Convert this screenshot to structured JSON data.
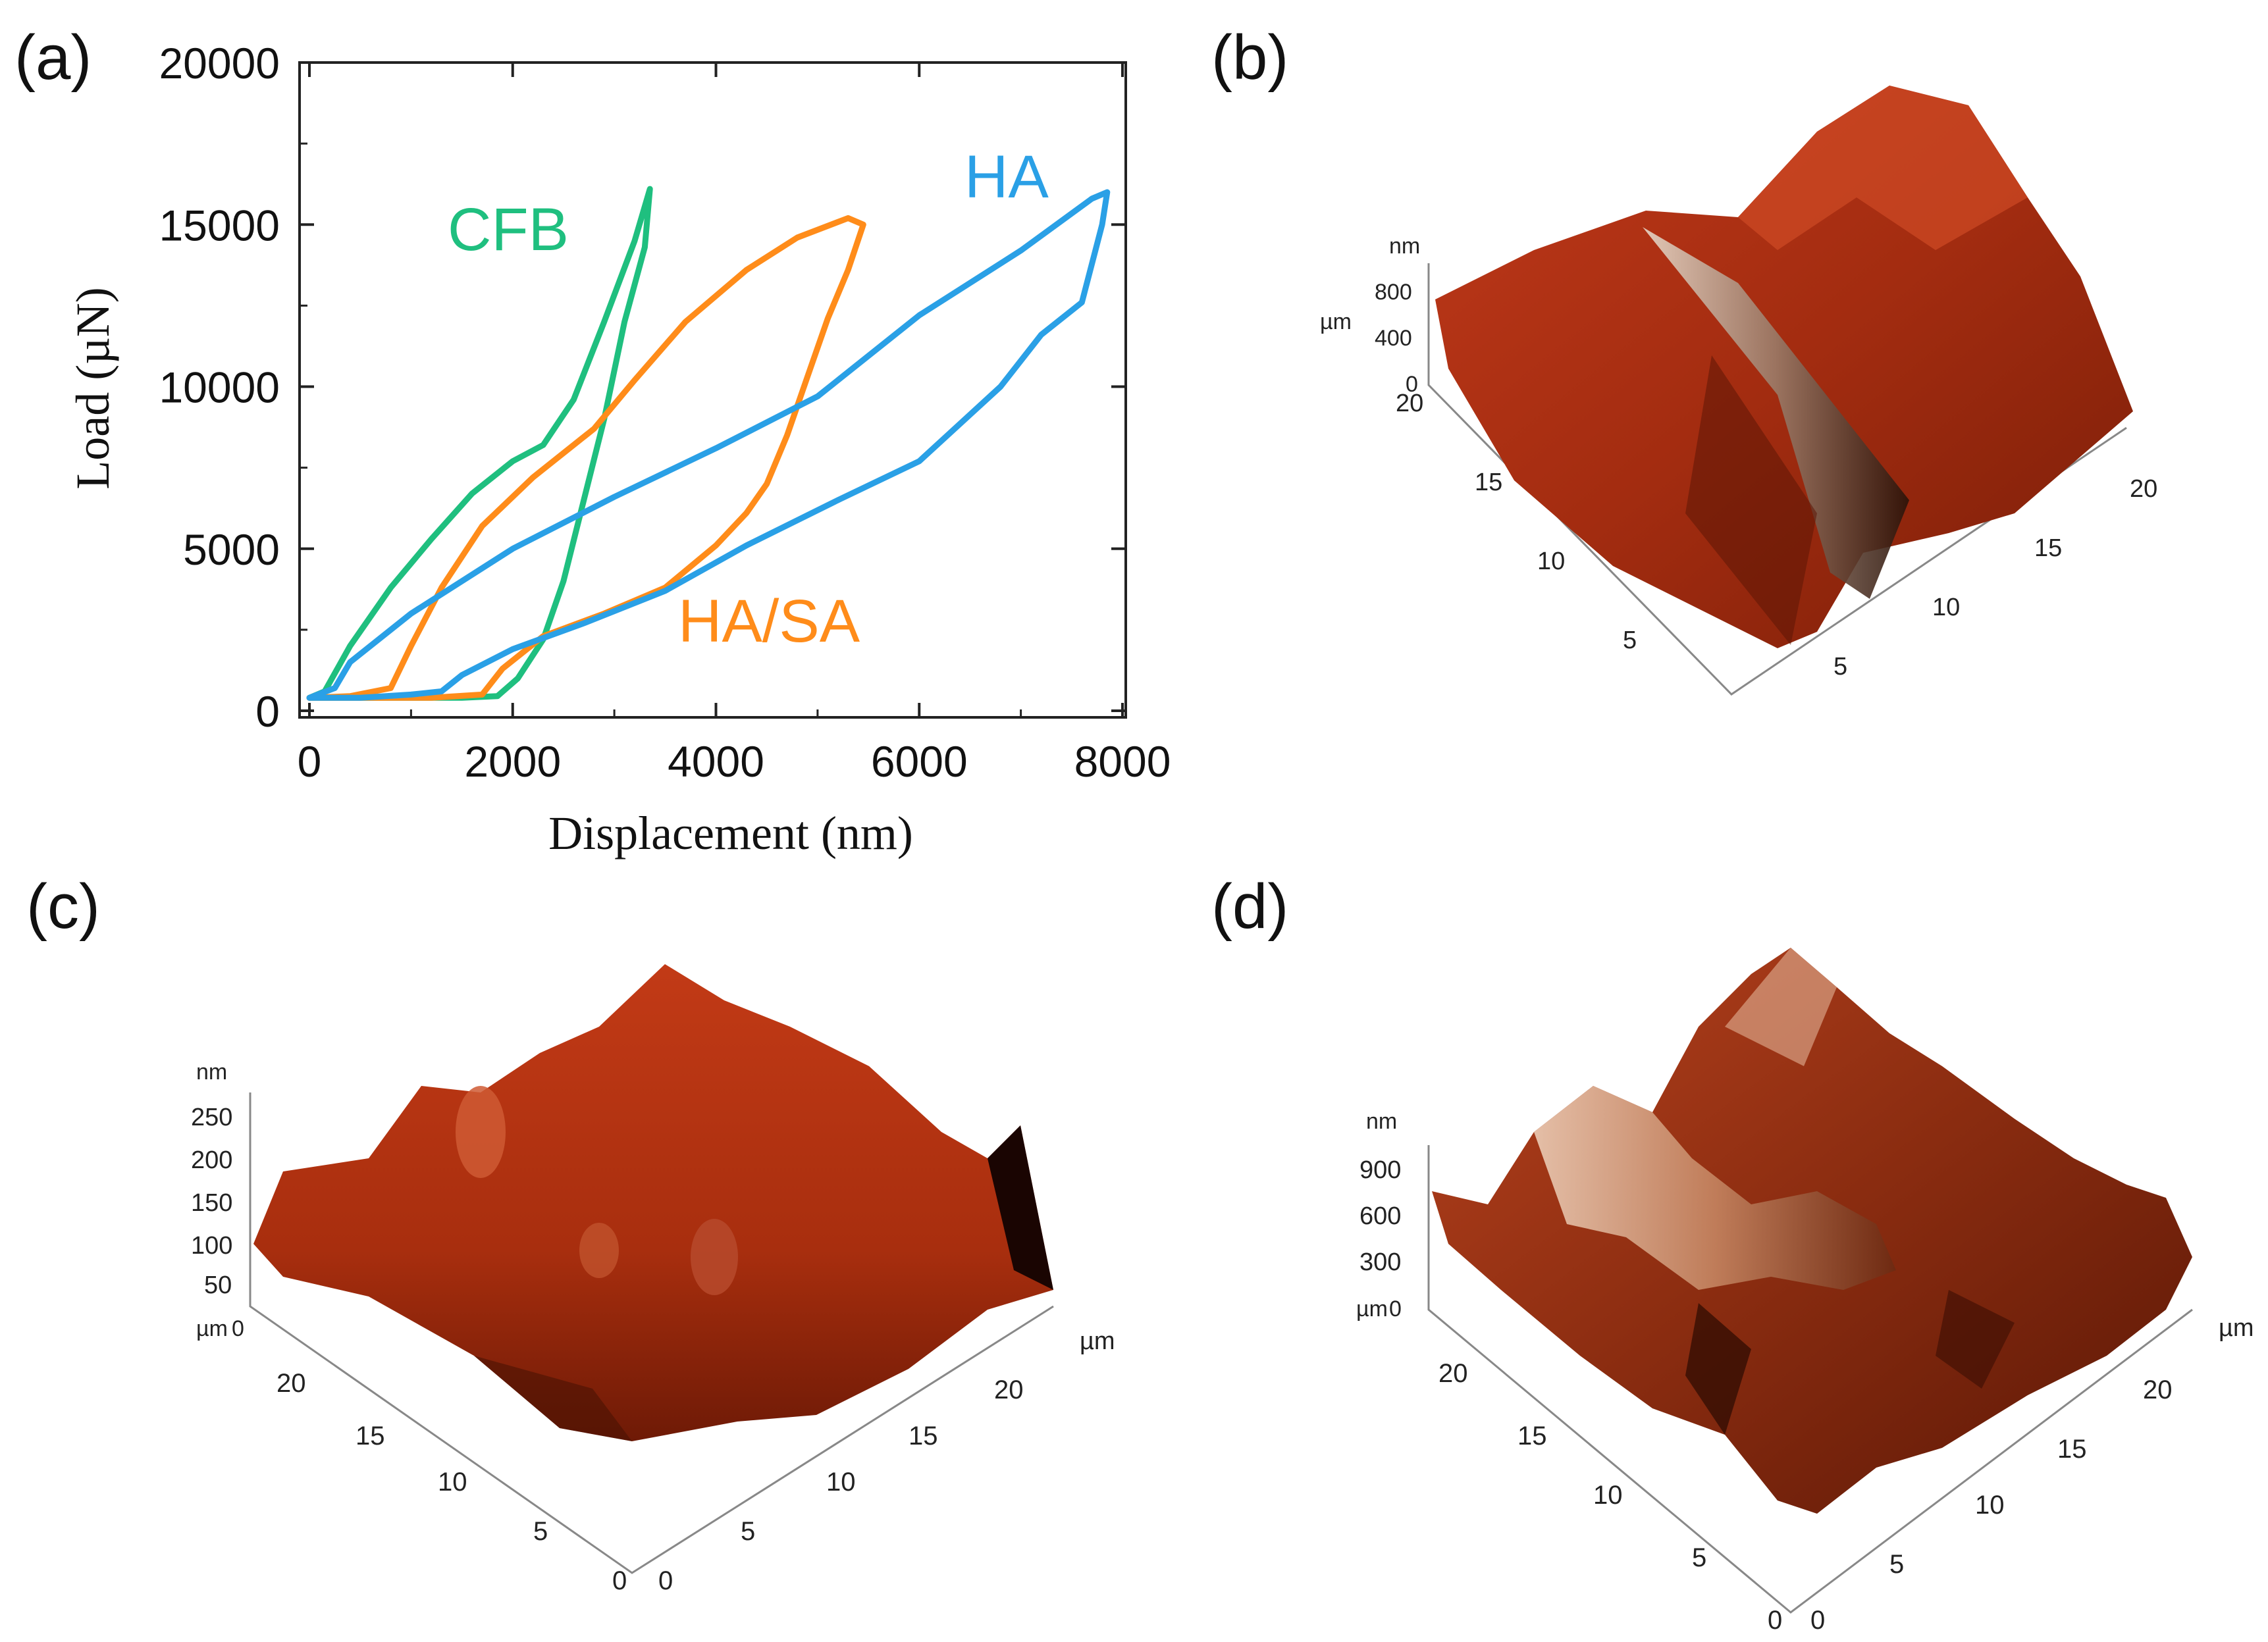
{
  "figure": {
    "panel_labels": [
      "(a)",
      "(b)",
      "(c)",
      "(d)"
    ]
  },
  "chart_data": [
    {
      "type": "line",
      "panel": "(a)",
      "title": "",
      "xlabel": "Displacement (nm)",
      "ylabel": "Load (µN)",
      "xlim": [
        0,
        8000
      ],
      "ylim": [
        0,
        20000
      ],
      "x_ticks": [
        0,
        2000,
        4000,
        6000,
        8000
      ],
      "y_ticks": [
        0,
        5000,
        10000,
        15000,
        20000
      ],
      "x_tick_labels": [
        "0",
        "2000",
        "4000",
        "6000",
        "8000"
      ],
      "y_tick_labels": [
        "0",
        "5000",
        "10000",
        "15000",
        "20000"
      ],
      "grid": false,
      "series": [
        {
          "name": "CFB",
          "color": "#1fbf7f",
          "points": [
            [
              0,
              400
            ],
            [
              150,
              600
            ],
            [
              400,
              2000
            ],
            [
              800,
              3800
            ],
            [
              1200,
              5300
            ],
            [
              1600,
              6700
            ],
            [
              2000,
              7700
            ],
            [
              2300,
              8200
            ],
            [
              2600,
              9600
            ],
            [
              2900,
              12000
            ],
            [
              3200,
              14500
            ],
            [
              3350,
              16100
            ],
            [
              3300,
              14300
            ],
            [
              3100,
              12000
            ],
            [
              2900,
              9000
            ],
            [
              2700,
              6500
            ],
            [
              2500,
              4000
            ],
            [
              2300,
              2200
            ],
            [
              2050,
              1000
            ],
            [
              1850,
              450
            ],
            [
              1500,
              400
            ],
            [
              1000,
              400
            ],
            [
              500,
              400
            ],
            [
              0,
              400
            ]
          ]
        },
        {
          "name": "HA/SA",
          "color": "#ff8c1a",
          "points": [
            [
              0,
              400
            ],
            [
              400,
              450
            ],
            [
              800,
              700
            ],
            [
              1000,
              2000
            ],
            [
              1300,
              3800
            ],
            [
              1700,
              5700
            ],
            [
              2200,
              7200
            ],
            [
              2800,
              8700
            ],
            [
              3200,
              10200
            ],
            [
              3700,
              12000
            ],
            [
              4300,
              13600
            ],
            [
              4800,
              14600
            ],
            [
              5300,
              15200
            ],
            [
              5450,
              15000
            ],
            [
              5300,
              13600
            ],
            [
              5100,
              12100
            ],
            [
              4900,
              10300
            ],
            [
              4700,
              8500
            ],
            [
              4500,
              7000
            ],
            [
              4300,
              6100
            ],
            [
              4000,
              5100
            ],
            [
              3500,
              3800
            ],
            [
              2900,
              3000
            ],
            [
              2300,
              2300
            ],
            [
              1900,
              1300
            ],
            [
              1700,
              500
            ],
            [
              1200,
              400
            ],
            [
              600,
              400
            ],
            [
              0,
              400
            ]
          ]
        },
        {
          "name": "HA",
          "color": "#2aa0e6",
          "points": [
            [
              0,
              400
            ],
            [
              250,
              700
            ],
            [
              400,
              1500
            ],
            [
              1000,
              3000
            ],
            [
              2000,
              5000
            ],
            [
              3000,
              6600
            ],
            [
              4000,
              8100
            ],
            [
              5000,
              9700
            ],
            [
              6000,
              12200
            ],
            [
              7000,
              14200
            ],
            [
              7700,
              15800
            ],
            [
              7850,
              16000
            ],
            [
              7800,
              15000
            ],
            [
              7600,
              12600
            ],
            [
              7200,
              11600
            ],
            [
              6800,
              10000
            ],
            [
              6000,
              7700
            ],
            [
              5200,
              6500
            ],
            [
              4300,
              5100
            ],
            [
              3500,
              3700
            ],
            [
              2700,
              2700
            ],
            [
              2000,
              1900
            ],
            [
              1500,
              1100
            ],
            [
              1300,
              600
            ],
            [
              1000,
              500
            ],
            [
              500,
              400
            ],
            [
              0,
              400
            ]
          ]
        }
      ],
      "annotations": [
        {
          "text": "CFB",
          "series": "CFB"
        },
        {
          "text": "HA",
          "series": "HA"
        },
        {
          "text": "HA/SA",
          "series": "HA/SA"
        }
      ]
    },
    {
      "type": "surface",
      "panel": "(b)",
      "z_unit": "nm",
      "z_ticks": [
        "0",
        "400",
        "800"
      ],
      "xy_unit": "µm",
      "axis_left_ticks": [
        "20",
        "15",
        "10",
        "5"
      ],
      "axis_right_ticks": [
        "5",
        "10",
        "15",
        "20"
      ]
    },
    {
      "type": "surface",
      "panel": "(c)",
      "z_unit": "nm",
      "z_ticks": [
        "0",
        "50",
        "100",
        "150",
        "200",
        "250"
      ],
      "xy_unit": "µm",
      "axis_left_ticks": [
        "20",
        "15",
        "10",
        "5",
        "0"
      ],
      "axis_right_ticks": [
        "0",
        "5",
        "10",
        "15",
        "20"
      ]
    },
    {
      "type": "surface",
      "panel": "(d)",
      "z_unit": "nm",
      "z_ticks": [
        "0",
        "300",
        "600",
        "900"
      ],
      "xy_unit": "µm",
      "axis_left_ticks": [
        "20",
        "15",
        "10",
        "5",
        "0"
      ],
      "axis_right_ticks": [
        "0",
        "5",
        "10",
        "15",
        "20"
      ]
    }
  ]
}
